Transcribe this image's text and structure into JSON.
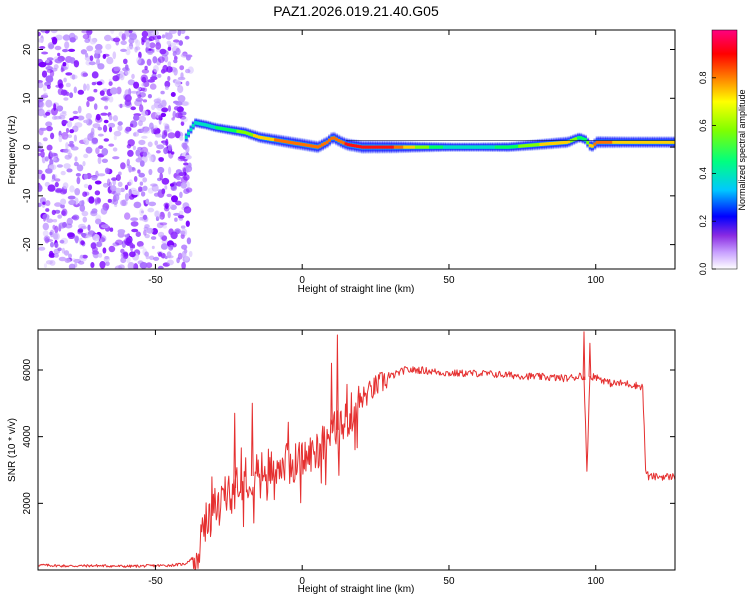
{
  "title": "PAZ1.2026.019.21.40.G05",
  "chart_data": [
    {
      "type": "heatmap",
      "name": "spectrogram",
      "xlabel": "Height of straight line (km)",
      "ylabel": "Frequency (Hz)",
      "xlim": [
        -90,
        127
      ],
      "ylim": [
        -25,
        24
      ],
      "xticks": [
        -50,
        0,
        50,
        100
      ],
      "yticks": [
        20,
        10,
        0,
        -10,
        -20
      ],
      "noise_region_x": [
        -90,
        -40
      ],
      "noise_amplitude_range": [
        0.0,
        0.1
      ],
      "ridge": {
        "x": [
          -40,
          -37,
          -33,
          -30,
          -25,
          -20,
          -15,
          -10,
          -5,
          0,
          5,
          8,
          10,
          13,
          15,
          20,
          30,
          40,
          50,
          60,
          70,
          80,
          90,
          94,
          96,
          98,
          100,
          110,
          120,
          127
        ],
        "f": [
          2,
          5,
          4.5,
          4,
          3.5,
          3,
          2,
          1.5,
          1,
          0.5,
          0,
          1,
          2,
          1,
          0.5,
          0,
          0,
          0,
          0,
          0,
          0,
          0.5,
          1,
          2,
          1.5,
          0,
          1,
          1,
          1,
          1
        ],
        "amp": [
          0.5,
          0.55,
          0.55,
          0.55,
          0.6,
          0.7,
          0.8,
          0.85,
          0.9,
          0.9,
          0.9,
          0.85,
          0.9,
          0.9,
          0.95,
          1.0,
          0.95,
          0.7,
          0.5,
          0.5,
          0.6,
          0.75,
          0.8,
          0.6,
          0.6,
          0.8,
          0.9,
          0.8,
          0.8,
          0.8
        ]
      },
      "colorbar": {
        "label": "Normalized spectral amplitude",
        "range": [
          0,
          1
        ],
        "ticks": [
          0.0,
          0.2,
          0.4,
          0.6,
          0.8
        ],
        "tick_labels": [
          "0.0",
          "0.2",
          "0.4",
          "0.6",
          "0.8"
        ],
        "colors": [
          "#ffffff",
          "#8a2be2",
          "#0000ff",
          "#00c8ff",
          "#00ff80",
          "#80ff00",
          "#ffff00",
          "#ff8000",
          "#ff0000",
          "#ff0080"
        ]
      }
    },
    {
      "type": "line",
      "name": "snr",
      "xlabel": "Height of straight line (km)",
      "ylabel": "SNR (10 * v/v)",
      "xlim": [
        -90,
        127
      ],
      "ylim": [
        0,
        7200
      ],
      "xticks": [
        -50,
        0,
        50,
        100
      ],
      "yticks": [
        2000,
        4000,
        6000
      ],
      "series": [
        {
          "name": "SNR",
          "color": "#e53030",
          "x": [
            -90,
            -80,
            -70,
            -60,
            -50,
            -45,
            -40,
            -36,
            -34,
            -30,
            -25,
            -20,
            -15,
            -10,
            -5,
            0,
            5,
            10,
            12,
            15,
            20,
            25,
            30,
            35,
            40,
            50,
            60,
            70,
            80,
            90,
            94,
            95,
            96,
            97,
            98,
            100,
            105,
            110,
            116,
            117,
            118,
            120,
            127
          ],
          "y": [
            150,
            120,
            130,
            110,
            130,
            140,
            180,
            450,
            1000,
            1800,
            2300,
            2700,
            2900,
            3100,
            3200,
            3300,
            3600,
            4100,
            4200,
            4500,
            5100,
            5500,
            5800,
            6000,
            6000,
            5900,
            5900,
            5850,
            5800,
            5750,
            5800,
            5900,
            5700,
            3000,
            5800,
            5800,
            5600,
            5600,
            5500,
            3000,
            2800,
            2800,
            2800
          ]
        }
      ]
    }
  ]
}
